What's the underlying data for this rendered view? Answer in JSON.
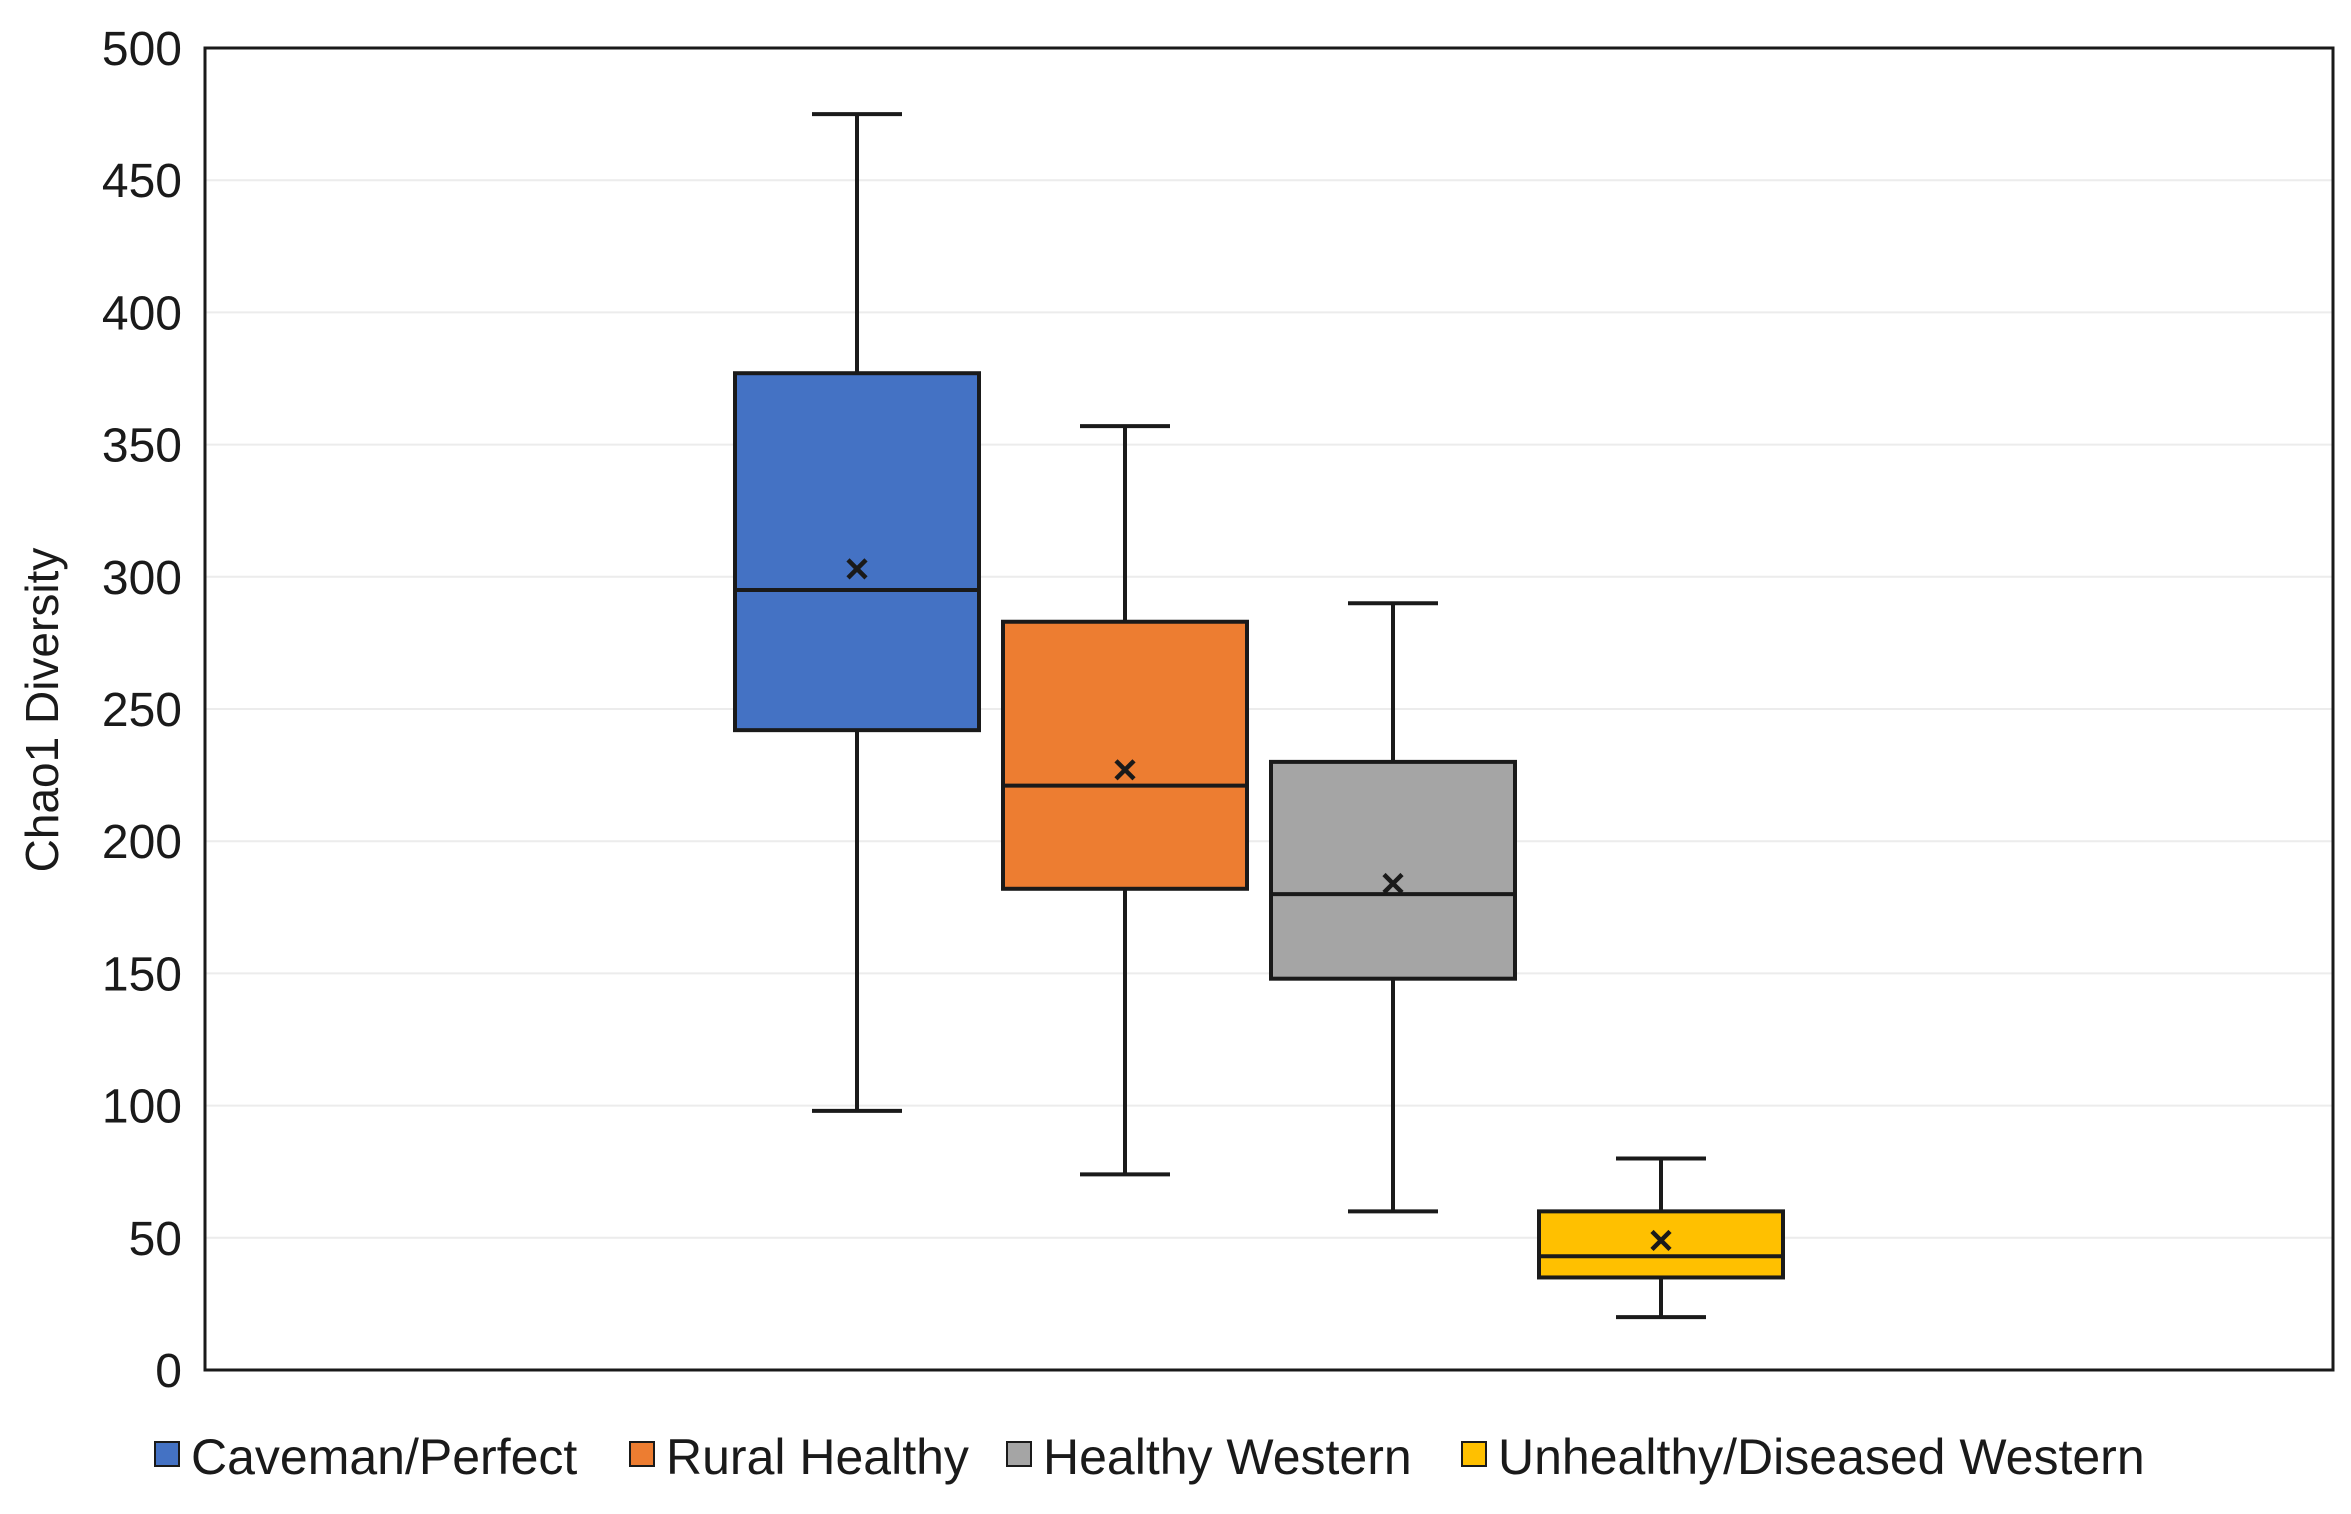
{
  "chart_data": {
    "type": "boxplot",
    "title": "",
    "xlabel": "",
    "ylabel": "Chao1 Diversity",
    "ylim": [
      0,
      500
    ],
    "yticks": [
      0,
      50,
      100,
      150,
      200,
      250,
      300,
      350,
      400,
      450,
      500
    ],
    "grid": true,
    "legend_position": "bottom",
    "series": [
      {
        "name": "Caveman/Perfect",
        "color": "#4472C4",
        "min": 98,
        "q1": 242,
        "median": 295,
        "q3": 377,
        "max": 475,
        "mean": 303
      },
      {
        "name": "Rural Healthy",
        "color": "#ED7D31",
        "min": 74,
        "q1": 182,
        "median": 221,
        "q3": 283,
        "max": 357,
        "mean": 227
      },
      {
        "name": "Healthy Western",
        "color": "#A5A5A5",
        "min": 60,
        "q1": 148,
        "median": 180,
        "q3": 230,
        "max": 290,
        "mean": 184
      },
      {
        "name": "Unhealthy/Diseased Western",
        "color": "#FFC000",
        "min": 20,
        "q1": 35,
        "median": 43,
        "q3": 60,
        "max": 80,
        "mean": 49
      }
    ]
  }
}
